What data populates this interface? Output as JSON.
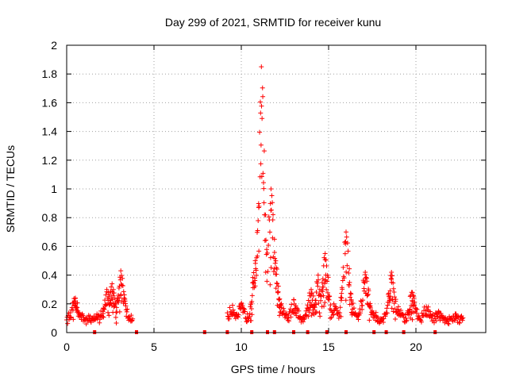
{
  "chart_data": {
    "type": "scatter",
    "title": "Day 299 of 2021, SRMTID for receiver kunu",
    "xlabel": "GPS time / hours",
    "ylabel": "SRMTID / TECUs",
    "xlim": [
      0,
      24
    ],
    "ylim": [
      0,
      2
    ],
    "xticks": [
      0,
      5,
      10,
      15,
      20
    ],
    "xtick_labels": [
      "0",
      "5",
      "10",
      "15",
      "20"
    ],
    "yticks": [
      0,
      0.2,
      0.4,
      0.6,
      0.8,
      1,
      1.2,
      1.4,
      1.6,
      1.8,
      2
    ],
    "ytick_labels": [
      "0",
      "0.2",
      "0.4",
      "0.6",
      "0.8",
      "1",
      "1.2",
      "1.4",
      "1.6",
      "1.8",
      "2"
    ],
    "grid": true,
    "marker": "+",
    "color": "#ff0000",
    "segments": [
      {
        "x_start": 0.0,
        "x_end": 3.8,
        "base": 0.12,
        "peaks": [
          [
            0.5,
            0.24
          ],
          [
            2.3,
            0.3
          ],
          [
            2.6,
            0.34
          ],
          [
            3.1,
            0.43
          ]
        ]
      },
      {
        "x_start": 9.2,
        "x_end": 22.7,
        "base": 0.11,
        "peaks": [
          [
            9.5,
            0.19
          ],
          [
            10.0,
            0.2
          ],
          [
            10.8,
            0.5
          ],
          [
            11.0,
            0.87
          ],
          [
            11.15,
            1.85
          ],
          [
            11.4,
            0.42
          ],
          [
            11.7,
            1.0
          ],
          [
            11.9,
            0.65
          ],
          [
            12.3,
            0.2
          ],
          [
            13.0,
            0.23
          ],
          [
            14.0,
            0.3
          ],
          [
            14.4,
            0.4
          ],
          [
            14.8,
            0.55
          ],
          [
            15.3,
            0.2
          ],
          [
            16.0,
            0.7
          ],
          [
            16.3,
            0.22
          ],
          [
            16.7,
            0.12
          ],
          [
            17.1,
            0.42
          ],
          [
            17.5,
            0.15
          ],
          [
            18.6,
            0.42
          ],
          [
            19.0,
            0.18
          ],
          [
            19.8,
            0.28
          ],
          [
            20.6,
            0.18
          ],
          [
            21.3,
            0.15
          ],
          [
            22.3,
            0.13
          ]
        ]
      }
    ],
    "gap_markers": [
      1.6,
      4.0,
      7.9,
      9.2,
      10.6,
      11.5,
      11.9,
      13.0,
      13.8,
      14.9,
      16.0,
      17.6,
      18.3,
      19.3,
      21.1
    ]
  }
}
